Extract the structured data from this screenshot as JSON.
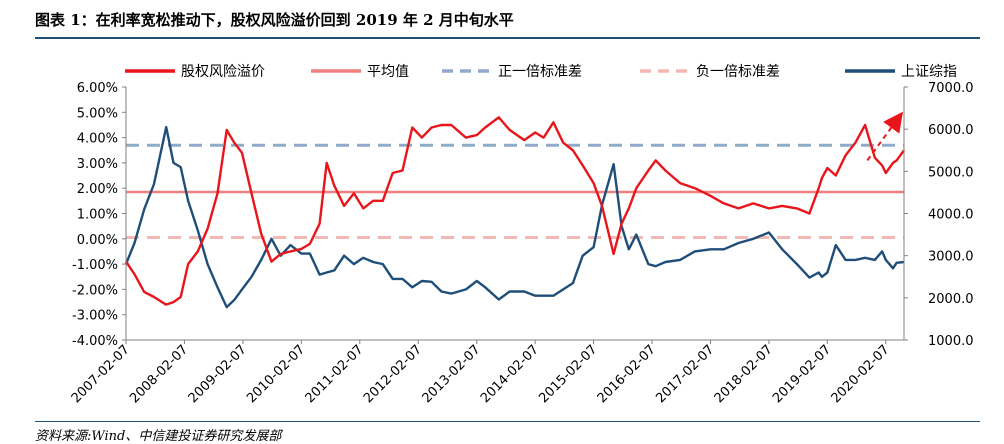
{
  "figure": {
    "title": "图表 1：在利率宽松推动下，股权风险溢价回到 2019 年 2 月中旬水平",
    "source": "资料来源:Wind、中信建投证券研究发展部"
  },
  "colors": {
    "premium": "#e8151b",
    "average": "#f08080",
    "plus_std": "#8fabc9",
    "minus_std": "#f4b8b4",
    "index": "#1f4e79",
    "arrow": "#e8151b"
  },
  "chart_data": {
    "type": "line",
    "x_axis": {
      "tick_labels": [
        "2007-02-07",
        "2008-02-07",
        "2009-02-07",
        "2010-02-07",
        "2011-02-07",
        "2012-02-07",
        "2013-02-07",
        "2014-02-07",
        "2015-02-07",
        "2016-02-07",
        "2017-02-07",
        "2018-02-07",
        "2019-02-07",
        "2020-02-07"
      ],
      "range": [
        "2007-02-07",
        "2020-05-31"
      ]
    },
    "y_left": {
      "tick_labels": [
        "6.00%",
        "5.00%",
        "4.00%",
        "3.00%",
        "2.00%",
        "1.00%",
        "0.00%",
        "-1.00%",
        "-2.00%",
        "-3.00%",
        "-4.00%"
      ],
      "range": [
        -4.0,
        6.0
      ],
      "unit": "%"
    },
    "y_right": {
      "tick_labels": [
        "7000.0",
        "6000.0",
        "5000.0",
        "4000.0",
        "3000.0",
        "2000.0",
        "1000.0"
      ],
      "range": [
        1000,
        7000
      ]
    },
    "legend": {
      "position": "top",
      "entries": [
        "股权风险溢价",
        "平均值",
        "正一倍标准差",
        "负一倍标准差",
        "上证综指"
      ]
    },
    "series": [
      {
        "name": "股权风险溢价",
        "axis": "left",
        "style": "solid",
        "x": [
          "2007-02-07",
          "2007-04-01",
          "2007-06-01",
          "2007-08-01",
          "2007-10-15",
          "2007-12-01",
          "2008-01-15",
          "2008-03-01",
          "2008-05-01",
          "2008-07-01",
          "2008-09-01",
          "2008-10-28",
          "2008-12-15",
          "2009-02-01",
          "2009-04-01",
          "2009-06-01",
          "2009-08-04",
          "2009-10-01",
          "2009-12-01",
          "2010-02-07",
          "2010-04-01",
          "2010-06-01",
          "2010-07-15",
          "2010-09-01",
          "2010-11-01",
          "2011-01-01",
          "2011-03-01",
          "2011-05-01",
          "2011-07-01",
          "2011-09-01",
          "2011-11-01",
          "2012-01-01",
          "2012-03-01",
          "2012-05-01",
          "2012-07-01",
          "2012-09-01",
          "2012-12-01",
          "2013-02-07",
          "2013-04-01",
          "2013-06-25",
          "2013-09-01",
          "2013-12-01",
          "2014-02-07",
          "2014-04-01",
          "2014-06-01",
          "2014-08-01",
          "2014-10-01",
          "2014-12-01",
          "2015-02-07",
          "2015-04-01",
          "2015-06-12",
          "2015-08-01",
          "2015-09-15",
          "2015-11-01",
          "2016-01-15",
          "2016-03-01",
          "2016-05-01",
          "2016-08-01",
          "2016-11-01",
          "2017-02-07",
          "2017-05-01",
          "2017-08-01",
          "2017-11-01",
          "2018-02-07",
          "2018-05-01",
          "2018-08-01",
          "2018-10-18",
          "2018-12-15",
          "2019-01-04",
          "2019-02-07",
          "2019-04-01",
          "2019-06-01",
          "2019-08-01",
          "2019-10-01",
          "2019-12-01",
          "2020-01-15",
          "2020-02-07",
          "2020-03-23",
          "2020-04-15",
          "2020-05-31"
        ],
        "values": [
          -0.9,
          -1.4,
          -2.1,
          -2.3,
          -2.6,
          -2.5,
          -2.3,
          -1.0,
          -0.5,
          0.4,
          1.8,
          4.3,
          3.8,
          3.4,
          1.8,
          0.2,
          -0.9,
          -0.6,
          -0.5,
          -0.4,
          -0.2,
          0.6,
          3.0,
          2.1,
          1.3,
          1.8,
          1.2,
          1.5,
          1.5,
          2.6,
          2.7,
          4.4,
          4.0,
          4.4,
          4.5,
          4.5,
          4.0,
          4.1,
          4.4,
          4.8,
          4.3,
          3.9,
          4.2,
          4.0,
          4.6,
          3.8,
          3.5,
          2.9,
          2.2,
          1.3,
          -0.6,
          0.6,
          1.2,
          2.0,
          2.7,
          3.1,
          2.7,
          2.2,
          2.0,
          1.7,
          1.4,
          1.2,
          1.4,
          1.2,
          1.3,
          1.2,
          1.0,
          2.0,
          2.4,
          2.8,
          2.5,
          3.3,
          3.8,
          4.5,
          3.2,
          2.9,
          2.6,
          3.0,
          3.1,
          3.5
        ]
      },
      {
        "name": "平均值",
        "axis": "left",
        "style": "solid",
        "x": [
          "2007-02-07",
          "2020-05-31"
        ],
        "values": [
          1.85,
          1.85
        ]
      },
      {
        "name": "正一倍标准差",
        "axis": "left",
        "style": "dashed",
        "x": [
          "2007-02-07",
          "2020-05-31"
        ],
        "values": [
          3.7,
          3.7
        ]
      },
      {
        "name": "负一倍标准差",
        "axis": "left",
        "style": "dashed",
        "x": [
          "2007-02-07",
          "2020-05-31"
        ],
        "values": [
          0.05,
          0.05
        ]
      },
      {
        "name": "上证综指",
        "axis": "right",
        "style": "solid",
        "x": [
          "2007-02-07",
          "2007-04-01",
          "2007-06-01",
          "2007-08-01",
          "2007-10-16",
          "2007-12-01",
          "2008-01-15",
          "2008-03-01",
          "2008-05-01",
          "2008-07-01",
          "2008-09-01",
          "2008-10-28",
          "2008-12-15",
          "2009-02-01",
          "2009-04-01",
          "2009-06-01",
          "2009-08-04",
          "2009-10-01",
          "2009-12-01",
          "2010-02-07",
          "2010-04-01",
          "2010-06-01",
          "2010-07-15",
          "2010-09-01",
          "2010-11-01",
          "2011-01-01",
          "2011-03-01",
          "2011-05-01",
          "2011-07-01",
          "2011-09-01",
          "2011-11-01",
          "2012-01-01",
          "2012-03-01",
          "2012-05-01",
          "2012-07-01",
          "2012-09-01",
          "2012-12-01",
          "2013-02-07",
          "2013-04-01",
          "2013-06-25",
          "2013-09-01",
          "2013-12-01",
          "2014-02-07",
          "2014-04-01",
          "2014-06-01",
          "2014-08-01",
          "2014-10-01",
          "2014-12-01",
          "2015-02-07",
          "2015-04-01",
          "2015-06-12",
          "2015-08-01",
          "2015-09-15",
          "2015-11-01",
          "2016-01-15",
          "2016-03-01",
          "2016-05-01",
          "2016-08-01",
          "2016-11-01",
          "2017-02-07",
          "2017-05-01",
          "2017-08-01",
          "2017-11-01",
          "2018-02-07",
          "2018-05-01",
          "2018-08-01",
          "2018-10-18",
          "2018-12-15",
          "2019-01-04",
          "2019-02-07",
          "2019-04-01",
          "2019-06-01",
          "2019-08-01",
          "2019-10-01",
          "2019-12-01",
          "2020-01-15",
          "2020-02-07",
          "2020-03-23",
          "2020-04-15",
          "2020-05-31"
        ],
        "values": [
          2800,
          3300,
          4100,
          4700,
          6050,
          5200,
          5100,
          4300,
          3600,
          2800,
          2250,
          1780,
          1950,
          2200,
          2500,
          2900,
          3400,
          3000,
          3250,
          3050,
          3050,
          2550,
          2600,
          2650,
          3000,
          2800,
          2950,
          2850,
          2800,
          2450,
          2450,
          2250,
          2400,
          2380,
          2150,
          2100,
          2200,
          2400,
          2250,
          1960,
          2150,
          2150,
          2050,
          2050,
          2050,
          2200,
          2350,
          3000,
          3200,
          4200,
          5170,
          3700,
          3150,
          3500,
          2800,
          2750,
          2850,
          2900,
          3100,
          3150,
          3150,
          3300,
          3400,
          3550,
          3150,
          2800,
          2480,
          2600,
          2500,
          2600,
          3250,
          2900,
          2900,
          2950,
          2900,
          3100,
          2900,
          2700,
          2830,
          2850
        ]
      }
    ],
    "annotations": [
      {
        "type": "arrow",
        "style": "dashed",
        "from": [
          "2019-10-15",
          3.1
        ],
        "to": [
          "2020-05-10",
          4.9
        ]
      }
    ]
  }
}
